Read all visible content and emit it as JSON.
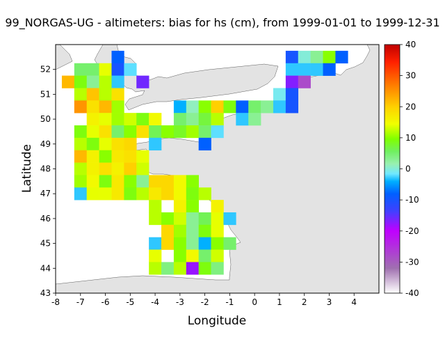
{
  "title": "99_NORGAS-UG - altimeters: bias for hs (cm), from 1999-01-01 to 1999-12-31",
  "map": {
    "xlabel": "Longitude",
    "ylabel": "Latitude",
    "xlim": [
      -8,
      5
    ],
    "ylim": [
      43,
      53
    ],
    "xticks": [
      "-8",
      "-7",
      "-6",
      "-5",
      "-4",
      "-3",
      "-2",
      "-1",
      "0",
      "1",
      "2",
      "3",
      "4"
    ],
    "yticks": [
      "43",
      "44",
      "45",
      "46",
      "47",
      "48",
      "49",
      "50",
      "51",
      "52"
    ],
    "land_color": "#e3e3e3",
    "sea_color": "#ffffff"
  },
  "colorbar": {
    "ticks": [
      "40",
      "30",
      "20",
      "10",
      "0",
      "-10",
      "-20",
      "-30",
      "-40"
    ],
    "range": [
      -40,
      40
    ]
  },
  "chart_data": {
    "type": "heatmap",
    "title": "99_NORGAS-UG - altimeters: bias for hs (cm), from 1999-01-01 to 1999-12-31",
    "xlabel": "Longitude",
    "ylabel": "Latitude",
    "cell_size_deg": 0.5,
    "value_range": [
      -40,
      40
    ],
    "cells": [
      {
        "lon": -5.5,
        "lat": 52.5,
        "v": -8
      },
      {
        "lon": 1.5,
        "lat": 52.5,
        "v": -10
      },
      {
        "lon": 2.0,
        "lat": 52.5,
        "v": 0
      },
      {
        "lon": 2.5,
        "lat": 52.5,
        "v": 3
      },
      {
        "lon": 3.0,
        "lat": 52.5,
        "v": 10
      },
      {
        "lon": 3.5,
        "lat": 52.5,
        "v": -8
      },
      {
        "lon": -7.0,
        "lat": 52.0,
        "v": 5
      },
      {
        "lon": -6.5,
        "lat": 52.0,
        "v": 5
      },
      {
        "lon": -6.0,
        "lat": 52.0,
        "v": 14
      },
      {
        "lon": -5.5,
        "lat": 52.0,
        "v": -10
      },
      {
        "lon": -5.0,
        "lat": 52.0,
        "v": -2
      },
      {
        "lon": 1.5,
        "lat": 52.0,
        "v": -3
      },
      {
        "lon": 2.0,
        "lat": 52.0,
        "v": -3
      },
      {
        "lon": 2.5,
        "lat": 52.0,
        "v": -3
      },
      {
        "lon": 3.0,
        "lat": 52.0,
        "v": -8
      },
      {
        "lon": -7.5,
        "lat": 51.5,
        "v": 22
      },
      {
        "lon": -7.0,
        "lat": 51.5,
        "v": 9
      },
      {
        "lon": -6.5,
        "lat": 51.5,
        "v": 3
      },
      {
        "lon": -6.0,
        "lat": 51.5,
        "v": 12
      },
      {
        "lon": -5.5,
        "lat": 51.5,
        "v": -3
      },
      {
        "lon": -4.5,
        "lat": 51.5,
        "v": -16
      },
      {
        "lon": 1.5,
        "lat": 51.5,
        "v": -17
      },
      {
        "lon": 2.0,
        "lat": 51.5,
        "v": -28
      },
      {
        "lon": -7.0,
        "lat": 51.0,
        "v": 12
      },
      {
        "lon": -6.5,
        "lat": 51.0,
        "v": 21
      },
      {
        "lon": -6.0,
        "lat": 51.0,
        "v": 12
      },
      {
        "lon": -5.5,
        "lat": 51.0,
        "v": 18
      },
      {
        "lon": 1.0,
        "lat": 51.0,
        "v": -1
      },
      {
        "lon": 1.5,
        "lat": 51.0,
        "v": -10
      },
      {
        "lon": -7.0,
        "lat": 50.5,
        "v": 25
      },
      {
        "lon": -6.5,
        "lat": 50.5,
        "v": 18
      },
      {
        "lon": -6.0,
        "lat": 50.5,
        "v": 22
      },
      {
        "lon": -5.5,
        "lat": 50.5,
        "v": 11
      },
      {
        "lon": -3.0,
        "lat": 50.5,
        "v": -4
      },
      {
        "lon": -2.5,
        "lat": 50.5,
        "v": 1
      },
      {
        "lon": -2.0,
        "lat": 50.5,
        "v": 10
      },
      {
        "lon": -1.5,
        "lat": 50.5,
        "v": 20
      },
      {
        "lon": -1.0,
        "lat": 50.5,
        "v": 9
      },
      {
        "lon": -0.5,
        "lat": 50.5,
        "v": -8
      },
      {
        "lon": 0.0,
        "lat": 50.5,
        "v": 5
      },
      {
        "lon": 0.5,
        "lat": 50.5,
        "v": 3
      },
      {
        "lon": 1.0,
        "lat": 50.5,
        "v": -3
      },
      {
        "lon": 1.5,
        "lat": 50.5,
        "v": -10
      },
      {
        "lon": -6.5,
        "lat": 50.0,
        "v": 16
      },
      {
        "lon": -6.0,
        "lat": 50.0,
        "v": 14
      },
      {
        "lon": -5.5,
        "lat": 50.0,
        "v": 11
      },
      {
        "lon": -5.0,
        "lat": 50.0,
        "v": 13
      },
      {
        "lon": -4.5,
        "lat": 50.0,
        "v": 9
      },
      {
        "lon": -4.0,
        "lat": 50.0,
        "v": 15
      },
      {
        "lon": -3.0,
        "lat": 50.0,
        "v": 5
      },
      {
        "lon": -2.5,
        "lat": 50.0,
        "v": 3
      },
      {
        "lon": -2.0,
        "lat": 50.0,
        "v": 7
      },
      {
        "lon": -1.5,
        "lat": 50.0,
        "v": 12
      },
      {
        "lon": -0.5,
        "lat": 50.0,
        "v": -3
      },
      {
        "lon": 0.0,
        "lat": 50.0,
        "v": 3
      },
      {
        "lon": -7.0,
        "lat": 49.5,
        "v": 9
      },
      {
        "lon": -6.5,
        "lat": 49.5,
        "v": 14
      },
      {
        "lon": -6.0,
        "lat": 49.5,
        "v": 18
      },
      {
        "lon": -5.5,
        "lat": 49.5,
        "v": 5
      },
      {
        "lon": -5.0,
        "lat": 49.5,
        "v": 10
      },
      {
        "lon": -4.5,
        "lat": 49.5,
        "v": 18
      },
      {
        "lon": -4.0,
        "lat": 49.5,
        "v": 6
      },
      {
        "lon": -3.5,
        "lat": 49.5,
        "v": 10
      },
      {
        "lon": -3.0,
        "lat": 49.5,
        "v": 8
      },
      {
        "lon": -2.5,
        "lat": 49.5,
        "v": 11
      },
      {
        "lon": -2.0,
        "lat": 49.5,
        "v": 5
      },
      {
        "lon": -1.5,
        "lat": 49.5,
        "v": -2
      },
      {
        "lon": -7.0,
        "lat": 49.0,
        "v": 12
      },
      {
        "lon": -6.5,
        "lat": 49.0,
        "v": 9
      },
      {
        "lon": -6.0,
        "lat": 49.0,
        "v": 14
      },
      {
        "lon": -5.5,
        "lat": 49.0,
        "v": 18
      },
      {
        "lon": -5.0,
        "lat": 49.0,
        "v": 19
      },
      {
        "lon": -4.0,
        "lat": 49.0,
        "v": -3
      },
      {
        "lon": -2.0,
        "lat": 49.0,
        "v": -8
      },
      {
        "lon": -7.0,
        "lat": 48.5,
        "v": 22
      },
      {
        "lon": -6.5,
        "lat": 48.5,
        "v": 16
      },
      {
        "lon": -6.0,
        "lat": 48.5,
        "v": 10
      },
      {
        "lon": -5.5,
        "lat": 48.5,
        "v": 17
      },
      {
        "lon": -5.0,
        "lat": 48.5,
        "v": 18
      },
      {
        "lon": -4.5,
        "lat": 48.5,
        "v": 14
      },
      {
        "lon": -7.0,
        "lat": 48.0,
        "v": 12
      },
      {
        "lon": -6.5,
        "lat": 48.0,
        "v": 16
      },
      {
        "lon": -6.0,
        "lat": 48.0,
        "v": 18
      },
      {
        "lon": -5.5,
        "lat": 48.0,
        "v": 16
      },
      {
        "lon": -5.0,
        "lat": 48.0,
        "v": 20
      },
      {
        "lon": -4.5,
        "lat": 48.0,
        "v": 13
      },
      {
        "lon": -7.0,
        "lat": 47.5,
        "v": 11
      },
      {
        "lon": -6.5,
        "lat": 47.5,
        "v": 15
      },
      {
        "lon": -6.0,
        "lat": 47.5,
        "v": 9
      },
      {
        "lon": -5.5,
        "lat": 47.5,
        "v": 17
      },
      {
        "lon": -5.0,
        "lat": 47.5,
        "v": 10
      },
      {
        "lon": -4.5,
        "lat": 47.5,
        "v": 3
      },
      {
        "lon": -4.0,
        "lat": 47.5,
        "v": 19
      },
      {
        "lon": -3.5,
        "lat": 47.5,
        "v": 19
      },
      {
        "lon": -3.0,
        "lat": 47.5,
        "v": 15
      },
      {
        "lon": -2.5,
        "lat": 47.5,
        "v": 10
      },
      {
        "lon": -7.0,
        "lat": 47.0,
        "v": -3
      },
      {
        "lon": -6.5,
        "lat": 47.0,
        "v": 14
      },
      {
        "lon": -6.0,
        "lat": 47.0,
        "v": 14
      },
      {
        "lon": -5.5,
        "lat": 47.0,
        "v": 17
      },
      {
        "lon": -5.0,
        "lat": 47.0,
        "v": 9
      },
      {
        "lon": -4.5,
        "lat": 47.0,
        "v": 12
      },
      {
        "lon": -4.0,
        "lat": 47.0,
        "v": 17
      },
      {
        "lon": -3.5,
        "lat": 47.0,
        "v": 19
      },
      {
        "lon": -3.0,
        "lat": 47.0,
        "v": 15
      },
      {
        "lon": -2.5,
        "lat": 47.0,
        "v": 9
      },
      {
        "lon": -2.0,
        "lat": 47.0,
        "v": 12
      },
      {
        "lon": -4.0,
        "lat": 46.5,
        "v": 12
      },
      {
        "lon": -3.0,
        "lat": 46.5,
        "v": 16
      },
      {
        "lon": -2.5,
        "lat": 46.5,
        "v": 10
      },
      {
        "lon": -1.5,
        "lat": 46.5,
        "v": 16
      },
      {
        "lon": -4.0,
        "lat": 46.0,
        "v": 12
      },
      {
        "lon": -3.5,
        "lat": 46.0,
        "v": 10
      },
      {
        "lon": -3.0,
        "lat": 46.0,
        "v": 13
      },
      {
        "lon": -2.5,
        "lat": 46.0,
        "v": 3
      },
      {
        "lon": -2.0,
        "lat": 46.0,
        "v": 6
      },
      {
        "lon": -1.5,
        "lat": 46.0,
        "v": 14
      },
      {
        "lon": -1.0,
        "lat": 46.0,
        "v": -3
      },
      {
        "lon": -3.5,
        "lat": 45.5,
        "v": 19
      },
      {
        "lon": -3.0,
        "lat": 45.5,
        "v": 11
      },
      {
        "lon": -2.5,
        "lat": 45.5,
        "v": 3
      },
      {
        "lon": -2.0,
        "lat": 45.5,
        "v": 9
      },
      {
        "lon": -1.5,
        "lat": 45.5,
        "v": 14
      },
      {
        "lon": -4.0,
        "lat": 45.0,
        "v": -3
      },
      {
        "lon": -3.5,
        "lat": 45.0,
        "v": 19
      },
      {
        "lon": -3.0,
        "lat": 45.0,
        "v": 10
      },
      {
        "lon": -2.5,
        "lat": 45.0,
        "v": 3
      },
      {
        "lon": -2.0,
        "lat": 45.0,
        "v": -4
      },
      {
        "lon": -1.5,
        "lat": 45.0,
        "v": 10
      },
      {
        "lon": -1.0,
        "lat": 45.0,
        "v": 5
      },
      {
        "lon": -4.0,
        "lat": 44.5,
        "v": 14
      },
      {
        "lon": -3.0,
        "lat": 44.5,
        "v": 10
      },
      {
        "lon": -2.5,
        "lat": 44.5,
        "v": 15
      },
      {
        "lon": -2.0,
        "lat": 44.5,
        "v": 5
      },
      {
        "lon": -1.5,
        "lat": 44.5,
        "v": 13
      },
      {
        "lon": -4.0,
        "lat": 44.0,
        "v": 12
      },
      {
        "lon": -3.5,
        "lat": 44.0,
        "v": 4
      },
      {
        "lon": -3.0,
        "lat": 44.0,
        "v": 12
      },
      {
        "lon": -2.5,
        "lat": 44.0,
        "v": -18
      },
      {
        "lon": -2.0,
        "lat": 44.0,
        "v": 9
      },
      {
        "lon": -1.5,
        "lat": 44.0,
        "v": 4
      }
    ]
  }
}
